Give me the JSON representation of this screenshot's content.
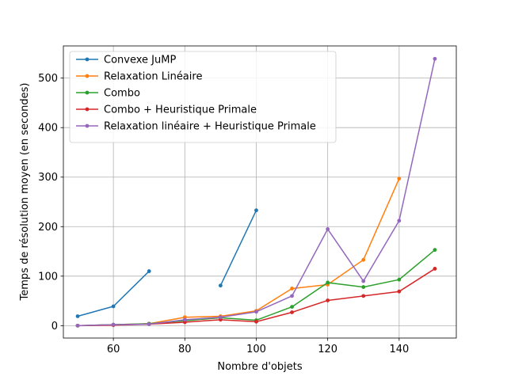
{
  "chart_data": {
    "type": "line",
    "xlabel": "Nombre d'objets",
    "ylabel": "Temps de résolution moyen (en secondes)",
    "xlim": [
      46,
      156
    ],
    "ylim": [
      -25,
      565
    ],
    "xticks": [
      60,
      80,
      100,
      120,
      140
    ],
    "yticks": [
      0,
      100,
      200,
      300,
      400,
      500
    ],
    "grid": true,
    "legend_position": "top-left",
    "series": [
      {
        "name": "Convexe JuMP",
        "color": "#1f77b4",
        "segments": [
          [
            [
              50,
              19
            ],
            [
              60,
              39
            ],
            [
              70,
              110
            ]
          ],
          [
            [
              90,
              81
            ],
            [
              100,
              233
            ]
          ]
        ]
      },
      {
        "name": "Relaxation Linéaire",
        "color": "#ff7f0e",
        "segments": [
          [
            [
              50,
              0
            ],
            [
              60,
              2
            ],
            [
              70,
              4
            ],
            [
              80,
              17
            ],
            [
              90,
              19
            ],
            [
              100,
              30
            ],
            [
              110,
              75
            ],
            [
              120,
              83
            ],
            [
              130,
              133
            ],
            [
              140,
              297
            ]
          ]
        ]
      },
      {
        "name": "Combo",
        "color": "#2ca02c",
        "segments": [
          [
            [
              50,
              0
            ],
            [
              60,
              2
            ],
            [
              70,
              4
            ],
            [
              80,
              10
            ],
            [
              90,
              16
            ],
            [
              100,
              11
            ],
            [
              110,
              38
            ],
            [
              120,
              87
            ],
            [
              130,
              78
            ],
            [
              140,
              93
            ],
            [
              150,
              153
            ]
          ]
        ]
      },
      {
        "name": "Combo + Heuristique Primale",
        "color": "#d62728",
        "segments": [
          [
            [
              50,
              0
            ],
            [
              60,
              1
            ],
            [
              70,
              3
            ],
            [
              80,
              7
            ],
            [
              90,
              12
            ],
            [
              100,
              8
            ],
            [
              110,
              27
            ],
            [
              120,
              51
            ],
            [
              130,
              60
            ],
            [
              140,
              69
            ],
            [
              150,
              115
            ]
          ]
        ]
      },
      {
        "name": "Relaxation linéaire + Heuristique Primale",
        "color": "#9467bd",
        "segments": [
          [
            [
              50,
              0
            ],
            [
              60,
              2
            ],
            [
              70,
              3
            ],
            [
              80,
              12
            ],
            [
              90,
              17
            ],
            [
              100,
              28
            ],
            [
              110,
              60
            ],
            [
              120,
              195
            ],
            [
              130,
              90
            ],
            [
              140,
              212
            ],
            [
              150,
              539
            ]
          ]
        ]
      }
    ]
  }
}
